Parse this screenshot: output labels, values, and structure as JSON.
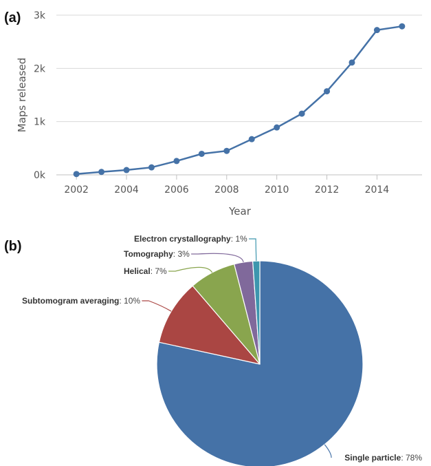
{
  "chart_data": [
    {
      "panel_label": "(a)",
      "type": "line",
      "xlabel": "Year",
      "ylabel": "Maps released",
      "x_ticks": [
        "2002",
        "2004",
        "2006",
        "2008",
        "2010",
        "2012",
        "2014"
      ],
      "y_ticks": [
        "0k",
        "1k",
        "2k",
        "3k"
      ],
      "xlim": [
        2001.2,
        2015.8
      ],
      "ylim": [
        0,
        3000
      ],
      "grid": true,
      "color": "#4572a7",
      "x": [
        2002,
        2003,
        2004,
        2005,
        2006,
        2007,
        2008,
        2009,
        2010,
        2011,
        2012,
        2013,
        2014,
        2015
      ],
      "y": [
        15,
        55,
        90,
        140,
        260,
        395,
        450,
        670,
        890,
        1150,
        1570,
        2110,
        2720,
        2790
      ]
    },
    {
      "panel_label": "(b)",
      "type": "pie",
      "slices": [
        {
          "name": "Single particle",
          "percent_label": ": 78%",
          "value": 78.4,
          "color": "#4572a7"
        },
        {
          "name": "Subtomogram averaging",
          "percent_label": ": 10%",
          "value": 10.3,
          "color": "#aa4643"
        },
        {
          "name": "Helical",
          "percent_label": ": 7%",
          "value": 7.3,
          "color": "#89a54e"
        },
        {
          "name": "Tomography",
          "percent_label": ": 3%",
          "value": 2.9,
          "color": "#80699b"
        },
        {
          "name": "Electron crystallography",
          "percent_label": ": 1%",
          "value": 1.1,
          "color": "#3d96ae"
        }
      ]
    }
  ]
}
